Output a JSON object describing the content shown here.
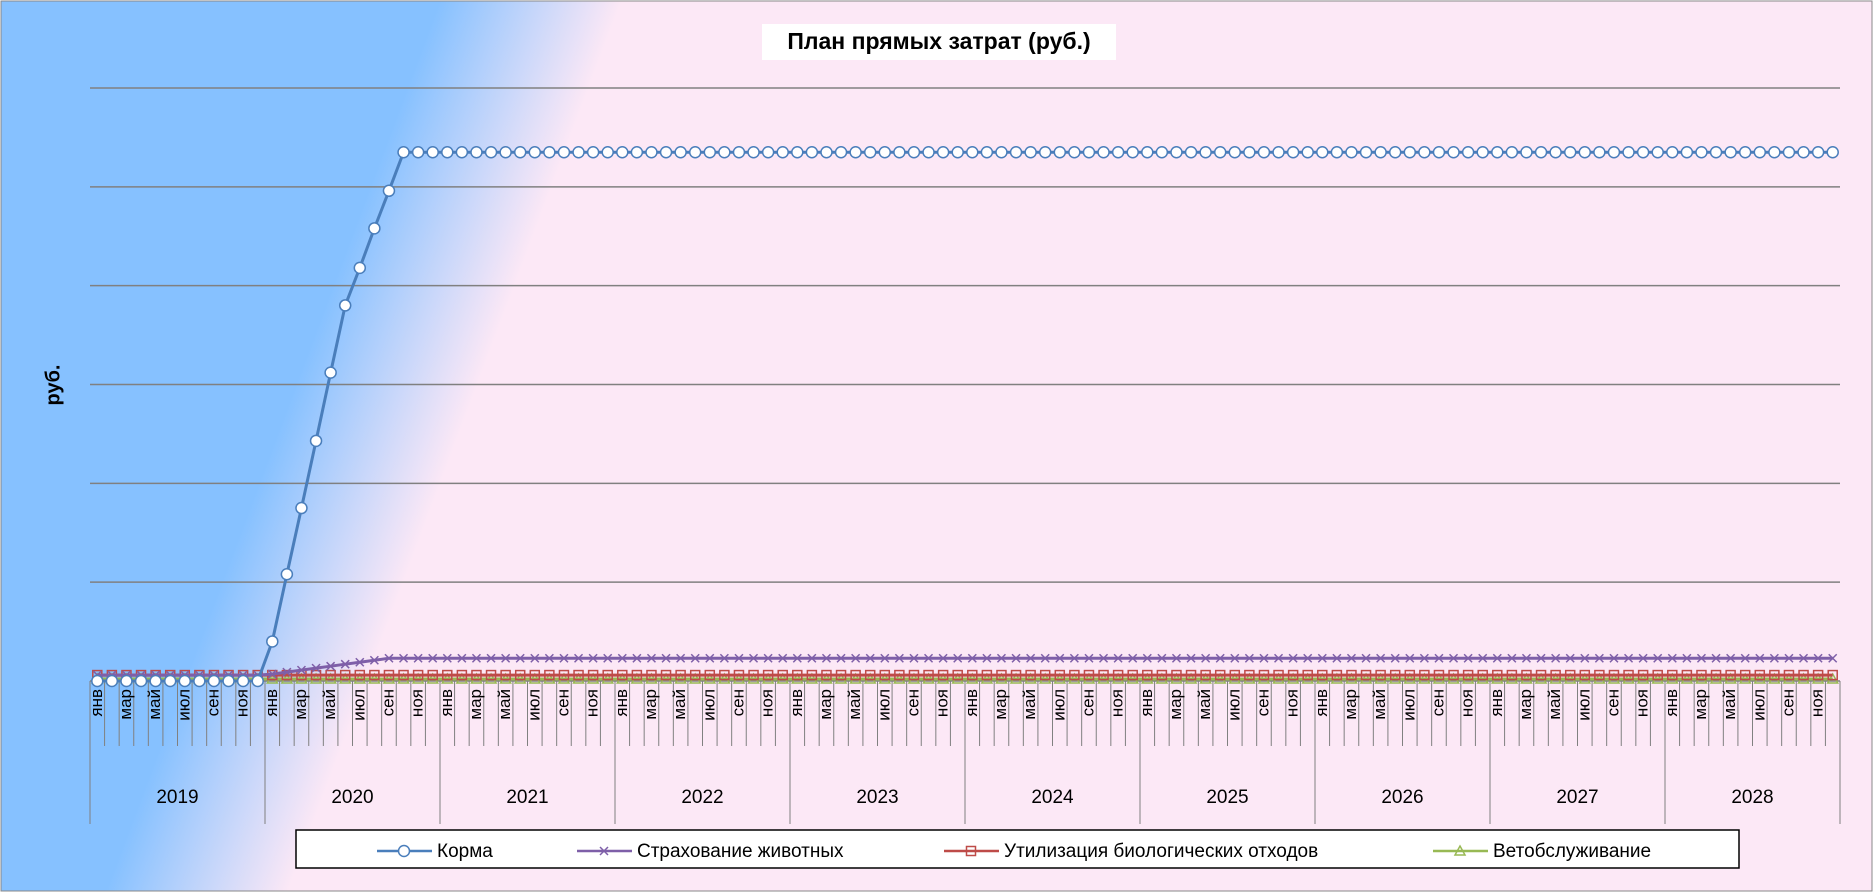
{
  "chart_data": {
    "type": "line",
    "title": "План прямых затрат (руб.)",
    "y_label": "руб.",
    "categories": [
      "янв",
      null,
      "мар",
      null,
      "май",
      null,
      "июл",
      null,
      "сен",
      null,
      "ноя",
      null,
      "янв",
      null,
      "мар",
      null,
      "май",
      null,
      "июл",
      null,
      "сен",
      null,
      "ноя",
      null,
      "янв",
      null,
      "мар",
      null,
      "май",
      null,
      "июл",
      null,
      "сен",
      null,
      "ноя",
      null,
      "янв",
      null,
      "мар",
      null,
      "май",
      null,
      "июл",
      null,
      "сен",
      null,
      "ноя",
      null,
      "янв",
      null,
      "мар",
      null,
      "май",
      null,
      "июл",
      null,
      "сен",
      null,
      "ноя",
      null,
      "янв",
      null,
      "мар",
      null,
      "май",
      null,
      "июл",
      null,
      "сен",
      null,
      "ноя",
      null,
      "янв",
      null,
      "мар",
      null,
      "май",
      null,
      "июл",
      null,
      "сен",
      null,
      "ноя",
      null,
      "янв",
      null,
      "мар",
      null,
      "май",
      null,
      "июл",
      null,
      "сен",
      null,
      "ноя",
      null,
      "янв",
      null,
      "мар",
      null,
      "май",
      null,
      "июл",
      null,
      "сен",
      null,
      "ноя",
      null,
      "янв",
      null,
      "мар",
      null,
      "май",
      null,
      "июл",
      null,
      "сен",
      null,
      "ноя",
      null
    ],
    "years": [
      "2019",
      "2020",
      "2021",
      "2022",
      "2023",
      "2024",
      "2025",
      "2026",
      "2027",
      "2028"
    ],
    "ylim": [
      0,
      6
    ],
    "yticks": [
      0,
      1,
      2,
      3,
      4,
      5,
      6
    ],
    "grid": true,
    "series": [
      {
        "name": "Корма",
        "color": "#4a7ebb",
        "marker": "circle",
        "values": [
          0,
          0,
          0,
          0,
          0,
          0,
          0,
          0,
          0,
          0,
          0,
          0,
          0.4,
          1.08,
          1.75,
          2.43,
          3.12,
          3.8,
          4.18,
          4.58,
          4.96,
          5.35,
          5.35,
          5.35,
          5.35,
          5.35,
          5.35,
          5.35,
          5.35,
          5.35,
          5.35,
          5.35,
          5.35,
          5.35,
          5.35,
          5.35,
          5.35,
          5.35,
          5.35,
          5.35,
          5.35,
          5.35,
          5.35,
          5.35,
          5.35,
          5.35,
          5.35,
          5.35,
          5.35,
          5.35,
          5.35,
          5.35,
          5.35,
          5.35,
          5.35,
          5.35,
          5.35,
          5.35,
          5.35,
          5.35,
          5.35,
          5.35,
          5.35,
          5.35,
          5.35,
          5.35,
          5.35,
          5.35,
          5.35,
          5.35,
          5.35,
          5.35,
          5.35,
          5.35,
          5.35,
          5.35,
          5.35,
          5.35,
          5.35,
          5.35,
          5.35,
          5.35,
          5.35,
          5.35,
          5.35,
          5.35,
          5.35,
          5.35,
          5.35,
          5.35,
          5.35,
          5.35,
          5.35,
          5.35,
          5.35,
          5.35,
          5.35,
          5.35,
          5.35,
          5.35,
          5.35,
          5.35,
          5.35,
          5.35,
          5.35,
          5.35,
          5.35,
          5.35,
          5.35,
          5.35,
          5.35,
          5.35,
          5.35,
          5.35,
          5.35,
          5.35,
          5.35,
          5.35,
          5.35,
          5.35
        ]
      },
      {
        "name": "Страхование животных",
        "color": "#7e5fa8",
        "marker": "x",
        "values": [
          0.06,
          0.06,
          0.06,
          0.06,
          0.06,
          0.06,
          0.06,
          0.06,
          0.06,
          0.06,
          0.06,
          0.06,
          0.07,
          0.09,
          0.11,
          0.13,
          0.15,
          0.17,
          0.19,
          0.21,
          0.23,
          0.23,
          0.23,
          0.23,
          0.23,
          0.23,
          0.23,
          0.23,
          0.23,
          0.23,
          0.23,
          0.23,
          0.23,
          0.23,
          0.23,
          0.23,
          0.23,
          0.23,
          0.23,
          0.23,
          0.23,
          0.23,
          0.23,
          0.23,
          0.23,
          0.23,
          0.23,
          0.23,
          0.23,
          0.23,
          0.23,
          0.23,
          0.23,
          0.23,
          0.23,
          0.23,
          0.23,
          0.23,
          0.23,
          0.23,
          0.23,
          0.23,
          0.23,
          0.23,
          0.23,
          0.23,
          0.23,
          0.23,
          0.23,
          0.23,
          0.23,
          0.23,
          0.23,
          0.23,
          0.23,
          0.23,
          0.23,
          0.23,
          0.23,
          0.23,
          0.23,
          0.23,
          0.23,
          0.23,
          0.23,
          0.23,
          0.23,
          0.23,
          0.23,
          0.23,
          0.23,
          0.23,
          0.23,
          0.23,
          0.23,
          0.23,
          0.23,
          0.23,
          0.23,
          0.23,
          0.23,
          0.23,
          0.23,
          0.23,
          0.23,
          0.23,
          0.23,
          0.23,
          0.23,
          0.23,
          0.23,
          0.23,
          0.23,
          0.23,
          0.23,
          0.23,
          0.23,
          0.23,
          0.23,
          0.23
        ]
      },
      {
        "name": "Утилизация биологических отходов",
        "color": "#be4b48",
        "marker": "square",
        "values": [
          0.06,
          0.06,
          0.06,
          0.06,
          0.06,
          0.06,
          0.06,
          0.06,
          0.06,
          0.06,
          0.06,
          0.06,
          0.06,
          0.06,
          0.06,
          0.06,
          0.06,
          0.06,
          0.06,
          0.06,
          0.06,
          0.06,
          0.06,
          0.06,
          0.06,
          0.06,
          0.06,
          0.06,
          0.06,
          0.06,
          0.06,
          0.06,
          0.06,
          0.06,
          0.06,
          0.06,
          0.06,
          0.06,
          0.06,
          0.06,
          0.06,
          0.06,
          0.06,
          0.06,
          0.06,
          0.06,
          0.06,
          0.06,
          0.06,
          0.06,
          0.06,
          0.06,
          0.06,
          0.06,
          0.06,
          0.06,
          0.06,
          0.06,
          0.06,
          0.06,
          0.06,
          0.06,
          0.06,
          0.06,
          0.06,
          0.06,
          0.06,
          0.06,
          0.06,
          0.06,
          0.06,
          0.06,
          0.06,
          0.06,
          0.06,
          0.06,
          0.06,
          0.06,
          0.06,
          0.06,
          0.06,
          0.06,
          0.06,
          0.06,
          0.06,
          0.06,
          0.06,
          0.06,
          0.06,
          0.06,
          0.06,
          0.06,
          0.06,
          0.06,
          0.06,
          0.06,
          0.06,
          0.06,
          0.06,
          0.06,
          0.06,
          0.06,
          0.06,
          0.06,
          0.06,
          0.06,
          0.06,
          0.06,
          0.06,
          0.06,
          0.06,
          0.06,
          0.06,
          0.06,
          0.06,
          0.06,
          0.06,
          0.06,
          0.06,
          0.06
        ]
      },
      {
        "name": "Ветобслуживание",
        "color": "#98b954",
        "marker": "triangle",
        "values": [
          0.02,
          0.02,
          0.02,
          0.02,
          0.02,
          0.02,
          0.02,
          0.02,
          0.02,
          0.02,
          0.02,
          0.02,
          0.02,
          0.02,
          0.02,
          0.02,
          0.02,
          0.02,
          0.02,
          0.02,
          0.02,
          0.02,
          0.02,
          0.02,
          0.02,
          0.02,
          0.02,
          0.02,
          0.02,
          0.02,
          0.02,
          0.02,
          0.02,
          0.02,
          0.02,
          0.02,
          0.02,
          0.02,
          0.02,
          0.02,
          0.02,
          0.02,
          0.02,
          0.02,
          0.02,
          0.02,
          0.02,
          0.02,
          0.02,
          0.02,
          0.02,
          0.02,
          0.02,
          0.02,
          0.02,
          0.02,
          0.02,
          0.02,
          0.02,
          0.02,
          0.02,
          0.02,
          0.02,
          0.02,
          0.02,
          0.02,
          0.02,
          0.02,
          0.02,
          0.02,
          0.02,
          0.02,
          0.02,
          0.02,
          0.02,
          0.02,
          0.02,
          0.02,
          0.02,
          0.02,
          0.02,
          0.02,
          0.02,
          0.02,
          0.02,
          0.02,
          0.02,
          0.02,
          0.02,
          0.02,
          0.02,
          0.02,
          0.02,
          0.02,
          0.02,
          0.02,
          0.02,
          0.02,
          0.02,
          0.02,
          0.02,
          0.02,
          0.02,
          0.02,
          0.02,
          0.02,
          0.02,
          0.02,
          0.02,
          0.02,
          0.02,
          0.02,
          0.02,
          0.02,
          0.02,
          0.02,
          0.02,
          0.02,
          0.02,
          0.02
        ]
      }
    ]
  }
}
